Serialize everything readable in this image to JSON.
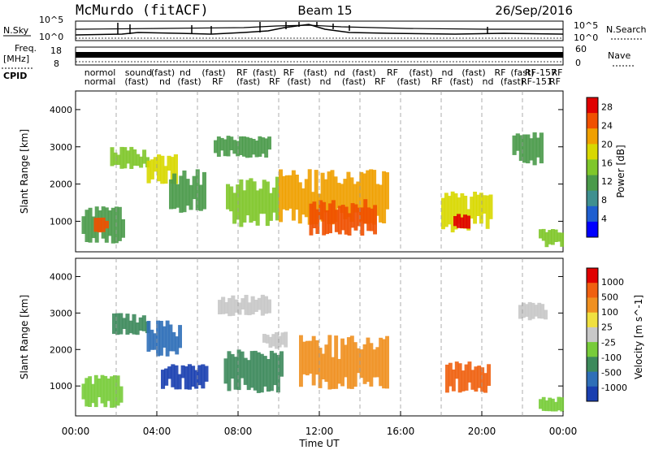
{
  "header": {
    "title": "McMurdo (fitACF)",
    "beam": "Beam 15",
    "date": "26/Sep/2016"
  },
  "top_panels": {
    "nsky_label": "N.Sky",
    "nsearch_label": "N.Search",
    "noise_ticks": [
      "10^5",
      "10^0"
    ],
    "freq_label_line1": "Freq.",
    "freq_label_line2": "[MHz]",
    "freq_ticks": [
      "18",
      "8"
    ],
    "nave_label": "Nave",
    "nave_ticks": [
      "60",
      "0"
    ],
    "cpid_label": "CPID"
  },
  "cpid_row1": [
    {
      "t": 1.2,
      "label": "normol"
    },
    {
      "t": 3.1,
      "label": "sound"
    },
    {
      "t": 4.3,
      "label": "(fast)"
    },
    {
      "t": 5.4,
      "label": "nd"
    },
    {
      "t": 6.8,
      "label": "(fast)"
    },
    {
      "t": 8.2,
      "label": "RF"
    },
    {
      "t": 9.3,
      "label": "(fast)"
    },
    {
      "t": 10.5,
      "label": "RF"
    },
    {
      "t": 11.8,
      "label": "(fast)"
    },
    {
      "t": 13.0,
      "label": "nd"
    },
    {
      "t": 14.2,
      "label": "(fast)"
    },
    {
      "t": 15.6,
      "label": "RF"
    },
    {
      "t": 17.0,
      "label": "(fast)"
    },
    {
      "t": 18.3,
      "label": "nd"
    },
    {
      "t": 19.6,
      "label": "(fast)"
    },
    {
      "t": 20.9,
      "label": "RF"
    },
    {
      "t": 22.0,
      "label": "(fast)"
    },
    {
      "t": 22.9,
      "label": "RF-157"
    },
    {
      "t": 23.7,
      "label": "RF"
    }
  ],
  "cpid_row2": [
    {
      "t": 1.2,
      "label": "normal"
    },
    {
      "t": 3.0,
      "label": "(fast)"
    },
    {
      "t": 4.4,
      "label": "nd"
    },
    {
      "t": 5.6,
      "label": "(fast)"
    },
    {
      "t": 7.0,
      "label": "RF"
    },
    {
      "t": 8.5,
      "label": "(fast)"
    },
    {
      "t": 9.8,
      "label": "RF"
    },
    {
      "t": 11.0,
      "label": "(fast)"
    },
    {
      "t": 12.3,
      "label": "nd"
    },
    {
      "t": 13.7,
      "label": "(fast)"
    },
    {
      "t": 15.0,
      "label": "RF"
    },
    {
      "t": 16.4,
      "label": "(fast)"
    },
    {
      "t": 17.8,
      "label": "RF"
    },
    {
      "t": 19.0,
      "label": "(fast)"
    },
    {
      "t": 20.3,
      "label": "nd"
    },
    {
      "t": 21.5,
      "label": "(fast)"
    },
    {
      "t": 22.7,
      "label": "RF-151"
    },
    {
      "t": 23.6,
      "label": "RF"
    }
  ],
  "chart_data": [
    {
      "type": "heatmap",
      "name": "power",
      "ylabel": "Slant Range [km]",
      "xlabel": "Time UT",
      "ylim": [
        180,
        4500
      ],
      "yticks": [
        "1000",
        "2000",
        "3000",
        "4000"
      ],
      "ytick_values": [
        1000,
        2000,
        3000,
        4000
      ],
      "xlim": [
        0,
        24
      ],
      "xticks": [
        "00:00",
        "04:00",
        "08:00",
        "12:00",
        "16:00",
        "20:00",
        "00:00"
      ],
      "xtick_values": [
        0,
        4,
        8,
        12,
        16,
        20,
        24
      ],
      "colorbar_label": "Power [dB]",
      "colorbar_ticks": [
        "4",
        "8",
        "12",
        "16",
        "20",
        "24",
        "28"
      ],
      "colorbar_range": [
        0,
        30
      ],
      "colorscale": [
        "#0000ff",
        "#1f5fd0",
        "#3f9090",
        "#4a9a4a",
        "#7fc72a",
        "#d8d800",
        "#f0a000",
        "#f05000",
        "#e00000"
      ],
      "patches": [
        {
          "t0": 0.3,
          "t1": 2.4,
          "r0": 400,
          "r1": 1400,
          "level": 10
        },
        {
          "t0": 0.9,
          "t1": 1.6,
          "r0": 700,
          "r1": 1100,
          "level": 26
        },
        {
          "t0": 1.7,
          "t1": 3.6,
          "r0": 2400,
          "r1": 3000,
          "level": 14
        },
        {
          "t0": 3.5,
          "t1": 5.0,
          "r0": 2000,
          "r1": 2800,
          "level": 18
        },
        {
          "t0": 4.6,
          "t1": 6.4,
          "r0": 1200,
          "r1": 2400,
          "level": 12
        },
        {
          "t0": 6.8,
          "t1": 9.6,
          "r0": 2700,
          "r1": 3300,
          "level": 12
        },
        {
          "t0": 7.4,
          "t1": 10.0,
          "r0": 800,
          "r1": 2200,
          "level": 16
        },
        {
          "t0": 10.0,
          "t1": 15.4,
          "r0": 900,
          "r1": 2400,
          "level": 20
        },
        {
          "t0": 11.5,
          "t1": 14.8,
          "r0": 600,
          "r1": 1600,
          "level": 26
        },
        {
          "t0": 18.0,
          "t1": 20.5,
          "r0": 700,
          "r1": 1800,
          "level": 18
        },
        {
          "t0": 18.6,
          "t1": 19.4,
          "r0": 800,
          "r1": 1200,
          "level": 28
        },
        {
          "t0": 21.5,
          "t1": 23.0,
          "r0": 2500,
          "r1": 3400,
          "level": 10
        },
        {
          "t0": 22.8,
          "t1": 24.0,
          "r0": 300,
          "r1": 800,
          "level": 14
        }
      ]
    },
    {
      "type": "heatmap",
      "name": "velocity",
      "ylabel": "Slant Range [km]",
      "xlabel": "Time UT",
      "ylim": [
        180,
        4500
      ],
      "yticks": [
        "1000",
        "2000",
        "3000",
        "4000"
      ],
      "ytick_values": [
        1000,
        2000,
        3000,
        4000
      ],
      "xlim": [
        0,
        24
      ],
      "xticks": [
        "00:00",
        "04:00",
        "08:00",
        "12:00",
        "16:00",
        "20:00",
        "00:00"
      ],
      "xtick_values": [
        0,
        4,
        8,
        12,
        16,
        20,
        24
      ],
      "colorbar_label": "Velocity [m s^-1]",
      "colorbar_ticks": [
        "1000",
        "500",
        "100",
        "25",
        "-25",
        "-100",
        "-500",
        "-1000"
      ],
      "colorscale": [
        "#1a3fb0",
        "#2f6fb8",
        "#3d8a5c",
        "#78cc3a",
        "#c8c8c8",
        "#f0e040",
        "#f09020",
        "#f06010",
        "#e00000"
      ],
      "patches": [
        {
          "t0": 0.3,
          "t1": 2.3,
          "r0": 400,
          "r1": 1300,
          "level": "#78cc3a"
        },
        {
          "t0": 1.8,
          "t1": 3.6,
          "r0": 2400,
          "r1": 3000,
          "level": "#3d8a5c"
        },
        {
          "t0": 3.5,
          "t1": 5.2,
          "r0": 1800,
          "r1": 2800,
          "level": "#2f6fb8"
        },
        {
          "t0": 4.2,
          "t1": 6.5,
          "r0": 900,
          "r1": 1600,
          "level": "#1a3fb0"
        },
        {
          "t0": 7.0,
          "t1": 9.6,
          "r0": 2900,
          "r1": 3500,
          "level": "#c8c8c8"
        },
        {
          "t0": 7.3,
          "t1": 10.2,
          "r0": 800,
          "r1": 2000,
          "level": "#3d8a5c"
        },
        {
          "t0": 9.2,
          "t1": 10.4,
          "r0": 2000,
          "r1": 2500,
          "level": "#c8c8c8"
        },
        {
          "t0": 11.0,
          "t1": 15.4,
          "r0": 900,
          "r1": 2400,
          "level": "#f09020"
        },
        {
          "t0": 18.2,
          "t1": 20.4,
          "r0": 800,
          "r1": 1700,
          "level": "#f06010"
        },
        {
          "t0": 21.8,
          "t1": 23.2,
          "r0": 2800,
          "r1": 3300,
          "level": "#c8c8c8"
        },
        {
          "t0": 22.8,
          "t1": 24.0,
          "r0": 300,
          "r1": 700,
          "level": "#78cc3a"
        }
      ]
    }
  ]
}
